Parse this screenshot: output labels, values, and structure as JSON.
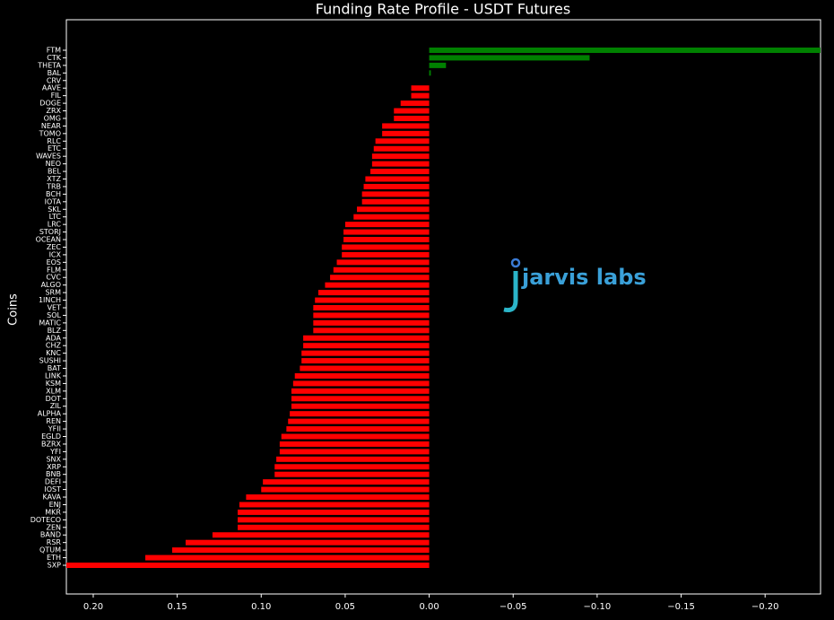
{
  "chart_data": {
    "type": "barh",
    "title": "Funding Rate Profile - USDT Futures",
    "ylabel": "Coins",
    "watermark": "jarvis labs",
    "categories": [
      "FTM",
      "CTK",
      "THETA",
      "BAL",
      "CRV",
      "AAVE",
      "FIL",
      "DOGE",
      "ZRX",
      "OMG",
      "NEAR",
      "TOMO",
      "RLC",
      "ETC",
      "WAVES",
      "NEO",
      "BEL",
      "XTZ",
      "TRB",
      "BCH",
      "IOTA",
      "SKL",
      "LTC",
      "LRC",
      "STORJ",
      "OCEAN",
      "ZEC",
      "ICX",
      "EOS",
      "FLM",
      "CVC",
      "ALGO",
      "SRM",
      "1INCH",
      "VET",
      "SOL",
      "MATIC",
      "BLZ",
      "ADA",
      "CHZ",
      "KNC",
      "SUSHI",
      "BAT",
      "LINK",
      "KSM",
      "XLM",
      "DOT",
      "ZIL",
      "ALPHA",
      "REN",
      "YFII",
      "EGLD",
      "BZRX",
      "YFI",
      "SNX",
      "XRP",
      "BNB",
      "DEFI",
      "IOST",
      "KAVA",
      "ENJ",
      "MKR",
      "DOTECO",
      "ZEN",
      "BAND",
      "RSR",
      "QTUM",
      "ETH",
      "SXP"
    ],
    "values": [
      -0.233,
      -0.0955,
      -0.01,
      -0.001,
      0,
      0.0107,
      0.0107,
      0.017,
      0.021,
      0.021,
      0.028,
      0.028,
      0.032,
      0.033,
      0.034,
      0.034,
      0.035,
      0.038,
      0.039,
      0.04,
      0.04,
      0.043,
      0.045,
      0.05,
      0.051,
      0.051,
      0.052,
      0.052,
      0.055,
      0.057,
      0.059,
      0.062,
      0.066,
      0.068,
      0.069,
      0.069,
      0.069,
      0.069,
      0.075,
      0.075,
      0.076,
      0.076,
      0.077,
      0.08,
      0.081,
      0.082,
      0.082,
      0.082,
      0.083,
      0.084,
      0.085,
      0.088,
      0.089,
      0.089,
      0.091,
      0.092,
      0.092,
      0.099,
      0.1,
      0.109,
      0.113,
      0.114,
      0.114,
      0.114,
      0.129,
      0.145,
      0.153,
      0.169,
      0.216
    ],
    "positive_color": "#ff0000",
    "negative_color": "#008000",
    "xlim": [
      0.216,
      -0.233
    ],
    "xticks": [
      {
        "value": 0.2,
        "label": "0.20"
      },
      {
        "value": 0.15,
        "label": "0.15"
      },
      {
        "value": 0.1,
        "label": "0.10"
      },
      {
        "value": 0.05,
        "label": "0.05"
      },
      {
        "value": 0,
        "label": "0.00"
      },
      {
        "value": -0.05,
        "label": "−0.05"
      },
      {
        "value": -0.1,
        "label": "−0.10"
      },
      {
        "value": -0.15,
        "label": "−0.15"
      },
      {
        "value": -0.2,
        "label": "−0.20"
      }
    ]
  }
}
